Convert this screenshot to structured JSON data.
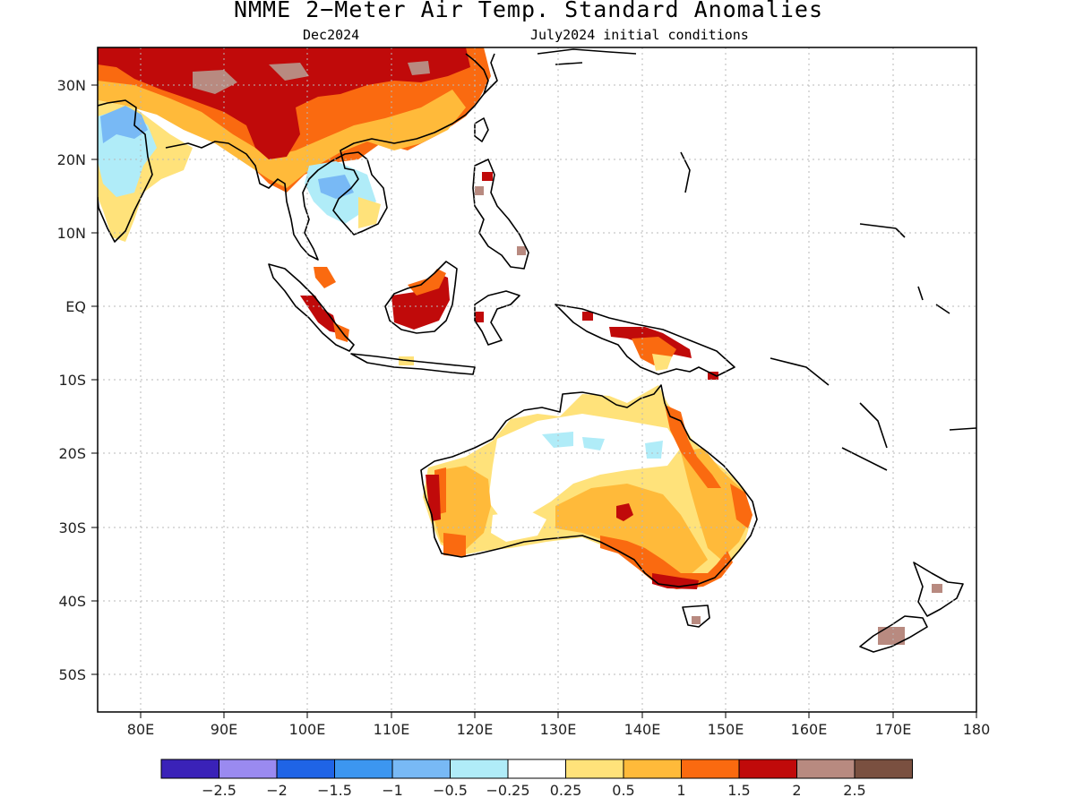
{
  "title": "NMME 2−Meter Air Temp. Standard Anomalies",
  "valid_month": "Dec2024",
  "initial_conditions": "July2024 initial conditions",
  "lon_ticks": [
    "80E",
    "90E",
    "100E",
    "110E",
    "120E",
    "130E",
    "140E",
    "150E",
    "160E",
    "170E",
    "180"
  ],
  "lat_ticks": [
    "30N",
    "20N",
    "10N",
    "EQ",
    "10S",
    "20S",
    "30S",
    "40S",
    "50S"
  ],
  "legend": {
    "colors": [
      "#3a22b8",
      "#9a8af0",
      "#1f64e6",
      "#3c96f0",
      "#78b9f5",
      "#b0ecf8",
      "#ffffff",
      "#ffe27a",
      "#ffba3a",
      "#fa6a10",
      "#c00a0a",
      "#b88a80",
      "#7a5040"
    ],
    "labels": [
      "−2.5",
      "−2",
      "−1.5",
      "−1",
      "−0.5",
      "−0.25",
      "0.25",
      "0.5",
      "1",
      "1.5",
      "2",
      "2.5"
    ]
  },
  "chart_data": {
    "type": "heatmap",
    "projection": "equirectangular",
    "xlim": [
      75,
      180
    ],
    "ylim": [
      -55,
      35
    ],
    "grid": true,
    "variable": "2-meter air temperature standard anomaly"
  }
}
